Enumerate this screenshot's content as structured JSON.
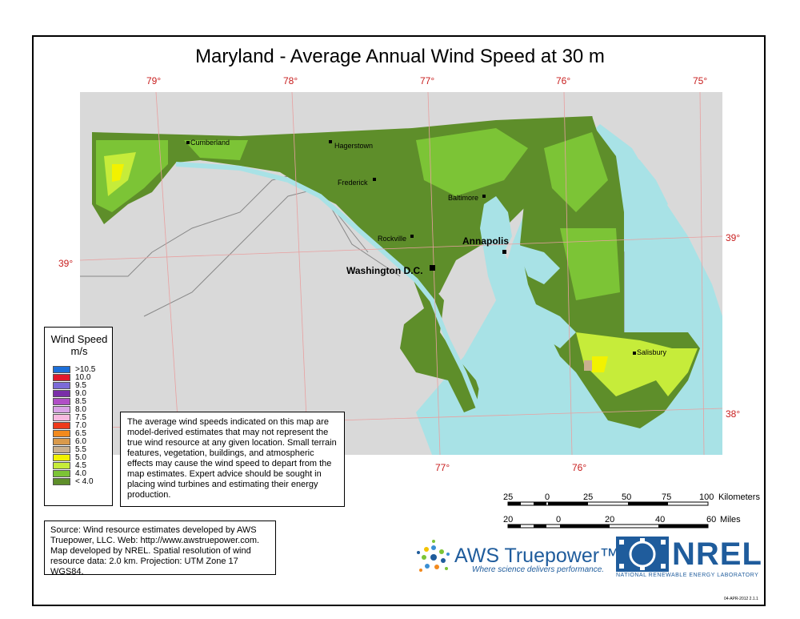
{
  "title": "Maryland - Average Annual Wind Speed at 30 m",
  "graticule": {
    "top_lon": [
      "79°",
      "78°",
      "77°",
      "76°",
      "75°"
    ],
    "bottom_lon": [
      "77°",
      "76°"
    ],
    "left_lat": [
      "39°"
    ],
    "right_lat": [
      "39°",
      "38°"
    ]
  },
  "cities": [
    {
      "name": "Cumberland",
      "major": false
    },
    {
      "name": "Hagerstown",
      "major": false
    },
    {
      "name": "Frederick",
      "major": false
    },
    {
      "name": "Baltimore",
      "major": false
    },
    {
      "name": "Rockville",
      "major": false
    },
    {
      "name": "Annapolis",
      "major": true
    },
    {
      "name": "Washington D.C.",
      "major": true
    },
    {
      "name": "Salisbury",
      "major": false
    }
  ],
  "legend": {
    "title_line1": "Wind Speed",
    "title_line2": "m/s",
    "items": [
      {
        "label": ">10.5",
        "color": "#1c6fd9"
      },
      {
        "label": "10.0",
        "color": "#e0182b"
      },
      {
        "label": "9.5",
        "color": "#7b6bd8"
      },
      {
        "label": "9.0",
        "color": "#7a2fa8"
      },
      {
        "label": "8.5",
        "color": "#b04fc6"
      },
      {
        "label": "8.0",
        "color": "#d9a3e6"
      },
      {
        "label": "7.5",
        "color": "#f7b9e0"
      },
      {
        "label": "7.0",
        "color": "#ee3a1a"
      },
      {
        "label": "6.5",
        "color": "#f28a1e"
      },
      {
        "label": "6.0",
        "color": "#d99a4c"
      },
      {
        "label": "5.5",
        "color": "#c9b08f"
      },
      {
        "label": "5.0",
        "color": "#f2f200"
      },
      {
        "label": "4.5",
        "color": "#c6ec3a"
      },
      {
        "label": "4.0",
        "color": "#7cc436"
      },
      {
        "label": "< 4.0",
        "color": "#5e8e2a"
      }
    ]
  },
  "note_text": "The average wind speeds indicated on this map are model-derived estimates that may not represent the true wind resource at any given location. Small terrain features, vegetation, buildings, and atmospheric effects may cause the wind speed to depart from the map estimates. Expert advice should be sought in placing wind turbines and estimating their energy production.",
  "source_text": "Source: Wind resource estimates developed by AWS Truepower, LLC.  Web: http://www.awstruepower.com.  Map developed by NREL.  Spatial resolution of wind resource data:  2.0 km. Projection:  UTM Zone 17 WGS84.",
  "scale": {
    "km_labels": [
      "25",
      "0",
      "25",
      "50",
      "75",
      "100"
    ],
    "km_unit": "Kilometers",
    "mi_labels": [
      "20",
      "0",
      "20",
      "40",
      "60"
    ],
    "mi_unit": "Miles"
  },
  "logos": {
    "aws_name": "AWS Truepower™",
    "aws_tagline": "Where science delivers performance.",
    "nrel_name": "NREL",
    "nrel_sub": "NATIONAL RENEWABLE ENERGY LABORATORY"
  },
  "datestamp": "04-APR-2012 2.1.1",
  "colors": {
    "land_outside": "#d9d9d9",
    "water": "#a8e2e6",
    "grid_line": "#e8a0a0",
    "wind_lt4": "#5e8e2a",
    "wind_4": "#7cc436",
    "wind_45": "#c6ec3a",
    "wind_5": "#f2f200"
  }
}
